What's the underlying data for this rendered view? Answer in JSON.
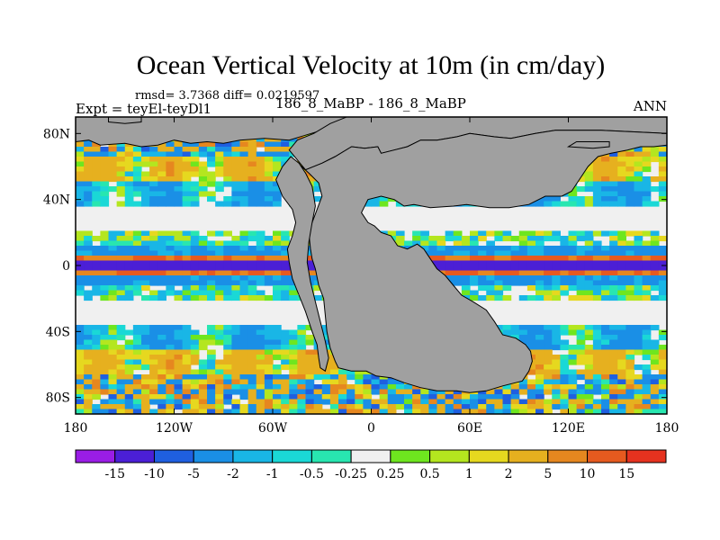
{
  "chart_data": {
    "type": "heatmap",
    "title": "Ocean Vertical Velocity at 10m (in cm/day)",
    "stats": "rmsd= 3.7368 diff= 0.0219597",
    "left_label": "Expt = teyEl-teyDl1",
    "center_label": "186_8_MaBP - 186_8_MaBP",
    "right_label": "ANN",
    "xlim": [
      -180,
      180
    ],
    "ylim": [
      -90,
      90
    ],
    "x_ticks": [
      {
        "value": -180,
        "label": "180"
      },
      {
        "value": -120,
        "label": "120W"
      },
      {
        "value": -60,
        "label": "60W"
      },
      {
        "value": 0,
        "label": "0"
      },
      {
        "value": 60,
        "label": "60E"
      },
      {
        "value": 120,
        "label": "120E"
      },
      {
        "value": 180,
        "label": "180"
      }
    ],
    "y_ticks": [
      {
        "value": 80,
        "label": "80N"
      },
      {
        "value": 40,
        "label": "40N"
      },
      {
        "value": 0,
        "label": "0"
      },
      {
        "value": -40,
        "label": "40S"
      },
      {
        "value": -80,
        "label": "80S"
      }
    ],
    "colorbar": {
      "colors": [
        "#9a1de6",
        "#4b1fd6",
        "#1f5fe0",
        "#1a8fe6",
        "#19b6e6",
        "#1ad8d6",
        "#28e6b0",
        "#f0f0f0",
        "#6ee61f",
        "#b4e61f",
        "#e6d81f",
        "#e6b01f",
        "#e6871f",
        "#e65a1f",
        "#e6321f"
      ],
      "levels": [
        "-15",
        "-10",
        "-5",
        "-2",
        "-1",
        "-0.5",
        "-0.25",
        "0.25",
        "0.5",
        "1",
        "2",
        "5",
        "10",
        "15"
      ]
    },
    "land_color": "#a0a0a0",
    "land_polygons": [
      [
        [
          -180,
          90
        ],
        [
          -180,
          75
        ],
        [
          -172,
          76
        ],
        [
          -165,
          73
        ],
        [
          -150,
          74
        ],
        [
          -140,
          72
        ],
        [
          -130,
          73
        ],
        [
          -120,
          76
        ],
        [
          -110,
          74
        ],
        [
          -100,
          75
        ],
        [
          -90,
          74
        ],
        [
          -80,
          76
        ],
        [
          -65,
          77
        ],
        [
          -50,
          76
        ],
        [
          -40,
          79
        ],
        [
          -30,
          82
        ],
        [
          -20,
          86
        ],
        [
          -15,
          90
        ]
      ],
      [
        [
          -50,
          70
        ],
        [
          -45,
          64
        ],
        [
          -40,
          58
        ],
        [
          -30,
          62
        ],
        [
          -22,
          66
        ],
        [
          -12,
          72
        ],
        [
          -4,
          71
        ],
        [
          4,
          72
        ],
        [
          6,
          68
        ],
        [
          14,
          70
        ],
        [
          22,
          72
        ],
        [
          30,
          76
        ],
        [
          40,
          76
        ],
        [
          52,
          78
        ],
        [
          60,
          80
        ],
        [
          75,
          78
        ],
        [
          85,
          77
        ],
        [
          100,
          80
        ],
        [
          112,
          82
        ],
        [
          140,
          82
        ],
        [
          160,
          81
        ],
        [
          180,
          80
        ],
        [
          180,
          90
        ],
        [
          -15,
          90
        ],
        [
          -25,
          86
        ],
        [
          -35,
          80
        ],
        [
          -45,
          76
        ]
      ],
      [
        [
          -47,
          64
        ],
        [
          -38,
          56
        ],
        [
          -32,
          50
        ],
        [
          -30,
          42
        ],
        [
          -33,
          34
        ],
        [
          -36,
          26
        ],
        [
          -38,
          20
        ],
        [
          -37,
          10
        ],
        [
          -36,
          4
        ],
        [
          -34,
          -2
        ],
        [
          -32,
          -12
        ],
        [
          -29,
          -20
        ],
        [
          -28,
          -30
        ],
        [
          -27,
          -40
        ],
        [
          -25,
          -50
        ],
        [
          -22,
          -58
        ],
        [
          -20,
          -62
        ],
        [
          -12,
          -64
        ],
        [
          -3,
          -64
        ],
        [
          3,
          -67
        ],
        [
          12,
          -68
        ],
        [
          20,
          -71
        ],
        [
          30,
          -74
        ],
        [
          40,
          -76
        ],
        [
          52,
          -76
        ],
        [
          60,
          -77
        ],
        [
          70,
          -76
        ],
        [
          80,
          -73
        ],
        [
          92,
          -70
        ],
        [
          96,
          -64
        ],
        [
          98,
          -58
        ],
        [
          97,
          -52
        ],
        [
          94,
          -48
        ],
        [
          88,
          -44
        ],
        [
          80,
          -42
        ],
        [
          75,
          -34
        ],
        [
          70,
          -27
        ],
        [
          62,
          -22
        ],
        [
          55,
          -18
        ],
        [
          50,
          -12
        ],
        [
          45,
          -6
        ],
        [
          40,
          -2
        ],
        [
          36,
          4
        ],
        [
          32,
          10
        ],
        [
          28,
          13
        ],
        [
          22,
          10
        ],
        [
          16,
          12
        ],
        [
          12,
          18
        ],
        [
          6,
          20
        ],
        [
          2,
          24
        ],
        [
          -2,
          26
        ],
        [
          -6,
          32
        ],
        [
          -2,
          40
        ],
        [
          6,
          42
        ],
        [
          14,
          40
        ],
        [
          20,
          36
        ],
        [
          26,
          37
        ],
        [
          36,
          35
        ],
        [
          50,
          36
        ],
        [
          58,
          37
        ],
        [
          72,
          35
        ],
        [
          84,
          35
        ],
        [
          96,
          37
        ],
        [
          102,
          40
        ],
        [
          106,
          42
        ],
        [
          116,
          42
        ],
        [
          122,
          45
        ],
        [
          128,
          54
        ],
        [
          132,
          60
        ],
        [
          138,
          66
        ],
        [
          146,
          68
        ],
        [
          156,
          70
        ],
        [
          164,
          72
        ],
        [
          172,
          72
        ],
        [
          180,
          73
        ],
        [
          180,
          80
        ],
        [
          160,
          81
        ],
        [
          140,
          82
        ],
        [
          112,
          82
        ],
        [
          100,
          80
        ],
        [
          85,
          77
        ],
        [
          75,
          78
        ],
        [
          60,
          80
        ],
        [
          52,
          78
        ],
        [
          40,
          76
        ],
        [
          30,
          76
        ],
        [
          22,
          72
        ],
        [
          14,
          70
        ],
        [
          6,
          68
        ],
        [
          4,
          72
        ],
        [
          -4,
          71
        ],
        [
          -12,
          72
        ],
        [
          -22,
          66
        ],
        [
          -30,
          62
        ],
        [
          -40,
          58
        ]
      ],
      [
        [
          -49,
          66
        ],
        [
          -54,
          60
        ],
        [
          -58,
          52
        ],
        [
          -54,
          42
        ],
        [
          -48,
          34
        ],
        [
          -46,
          26
        ],
        [
          -48,
          18
        ],
        [
          -51,
          10
        ],
        [
          -50,
          2
        ],
        [
          -48,
          -8
        ],
        [
          -44,
          -18
        ],
        [
          -40,
          -28
        ],
        [
          -36,
          -40
        ],
        [
          -33,
          -48
        ],
        [
          -32,
          -56
        ],
        [
          -31,
          -62
        ],
        [
          -28,
          -64
        ],
        [
          -26,
          -56
        ],
        [
          -28,
          -46
        ],
        [
          -31,
          -34
        ],
        [
          -34,
          -22
        ],
        [
          -37,
          -10
        ],
        [
          -39,
          2
        ],
        [
          -38,
          14
        ],
        [
          -36,
          26
        ],
        [
          -34,
          36
        ],
        [
          -36,
          48
        ],
        [
          -40,
          56
        ],
        [
          -44,
          62
        ]
      ],
      [
        [
          -160,
          87
        ],
        [
          -150,
          86
        ],
        [
          -140,
          87
        ],
        [
          -140,
          90
        ],
        [
          -160,
          90
        ]
      ],
      [
        [
          120,
          72
        ],
        [
          135,
          71
        ],
        [
          145,
          72
        ],
        [
          145,
          75
        ],
        [
          125,
          75
        ]
      ]
    ]
  }
}
